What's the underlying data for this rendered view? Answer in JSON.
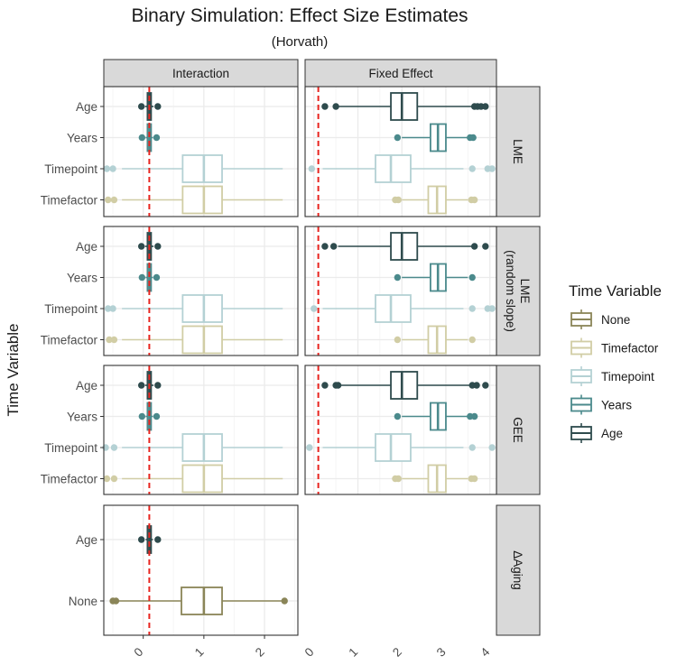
{
  "chart_data": {
    "type": "boxplot",
    "title": "Binary Simulation: Effect Size Estimates",
    "subtitle": "(Horvath)",
    "ylabel": "Time Variable",
    "xlabel": "",
    "reference_line": 0.1,
    "legend": {
      "title": "Time Variable",
      "placement": "right",
      "items": [
        {
          "label": "None",
          "color": "#8a8558"
        },
        {
          "label": "Timefactor",
          "color": "#d1cda5"
        },
        {
          "label": "Timepoint",
          "color": "#b4d1d4"
        },
        {
          "label": "Years",
          "color": "#4b8a8c"
        },
        {
          "label": "Age",
          "color": "#2e4b4d"
        }
      ]
    },
    "columns": [
      {
        "label": "Interaction",
        "xlim": [
          -0.65,
          2.55
        ],
        "ticks": [
          "0",
          "1",
          "2"
        ],
        "tick_values": [
          0,
          1,
          2
        ]
      },
      {
        "label": "Fixed Effect",
        "xlim": [
          -0.2,
          4.15
        ],
        "ticks": [
          "0",
          "1",
          "2",
          "3",
          "4"
        ],
        "tick_values": [
          0,
          1,
          2,
          3,
          4
        ]
      }
    ],
    "rows": [
      {
        "label": "LME",
        "label_lines": [
          "LME"
        ],
        "categories": [
          "Age",
          "Years",
          "Timepoint",
          "Timefactor"
        ]
      },
      {
        "label": "LME (random slope)",
        "label_lines": [
          "LME",
          "(random slope)"
        ],
        "categories": [
          "Age",
          "Years",
          "Timepoint",
          "Timefactor"
        ]
      },
      {
        "label": "GEE",
        "label_lines": [
          "GEE"
        ],
        "categories": [
          "Age",
          "Years",
          "Timepoint",
          "Timefactor"
        ]
      },
      {
        "label": "ΔAging",
        "label_lines": [
          "ΔAging"
        ],
        "categories": [
          "Age",
          "None"
        ]
      }
    ],
    "panels": [
      {
        "row": 0,
        "col": 0,
        "boxes": [
          {
            "category": "Age",
            "group": "Age",
            "whisker_low": 0.03,
            "q1": 0.07,
            "median": 0.1,
            "q3": 0.13,
            "whisker_high": 0.17,
            "outliers": [
              -0.03,
              0.24
            ]
          },
          {
            "category": "Years",
            "group": "Years",
            "whisker_low": 0.04,
            "q1": 0.07,
            "median": 0.1,
            "q3": 0.13,
            "whisker_high": 0.16,
            "outliers": [
              -0.02,
              0.22
            ]
          },
          {
            "category": "Timepoint",
            "group": "Timepoint",
            "whisker_low": -0.35,
            "q1": 0.65,
            "median": 1.0,
            "q3": 1.3,
            "whisker_high": 2.3,
            "outliers": [
              -0.5,
              -0.6
            ]
          },
          {
            "category": "Timefactor",
            "group": "Timefactor",
            "whisker_low": -0.35,
            "q1": 0.65,
            "median": 1.0,
            "q3": 1.3,
            "whisker_high": 2.3,
            "outliers": [
              -0.48,
              -0.58
            ]
          }
        ]
      },
      {
        "row": 0,
        "col": 1,
        "boxes": [
          {
            "category": "Age",
            "group": "Age",
            "whisker_low": 0.55,
            "q1": 1.75,
            "median": 2.0,
            "q3": 2.35,
            "whisker_high": 3.6,
            "outliers": [
              0.25,
              0.5,
              3.65,
              3.72,
              3.8,
              3.9
            ]
          },
          {
            "category": "Years",
            "group": "Years",
            "whisker_low": 2.0,
            "q1": 2.65,
            "median": 2.82,
            "q3": 3.0,
            "whisker_high": 3.5,
            "outliers": [
              1.9,
              3.55,
              3.62
            ]
          },
          {
            "category": "Timepoint",
            "group": "Timepoint",
            "whisker_low": 0.2,
            "q1": 1.4,
            "median": 1.75,
            "q3": 2.2,
            "whisker_high": 3.4,
            "outliers": [
              -0.05,
              3.6,
              3.95,
              4.05
            ]
          },
          {
            "category": "Timefactor",
            "group": "Timefactor",
            "whisker_low": 2.0,
            "q1": 2.6,
            "median": 2.8,
            "q3": 3.0,
            "whisker_high": 3.5,
            "outliers": [
              1.85,
              1.92,
              3.58,
              3.65
            ]
          }
        ]
      },
      {
        "row": 1,
        "col": 0,
        "boxes": [
          {
            "category": "Age",
            "group": "Age",
            "whisker_low": 0.03,
            "q1": 0.07,
            "median": 0.1,
            "q3": 0.13,
            "whisker_high": 0.17,
            "outliers": [
              -0.03,
              0.24
            ]
          },
          {
            "category": "Years",
            "group": "Years",
            "whisker_low": 0.04,
            "q1": 0.07,
            "median": 0.1,
            "q3": 0.13,
            "whisker_high": 0.16,
            "outliers": [
              -0.02,
              0.22
            ]
          },
          {
            "category": "Timepoint",
            "group": "Timepoint",
            "whisker_low": -0.35,
            "q1": 0.65,
            "median": 1.0,
            "q3": 1.3,
            "whisker_high": 2.3,
            "outliers": [
              -0.5,
              -0.58
            ]
          },
          {
            "category": "Timefactor",
            "group": "Timefactor",
            "whisker_low": -0.35,
            "q1": 0.65,
            "median": 1.0,
            "q3": 1.3,
            "whisker_high": 2.3,
            "outliers": [
              -0.48,
              -0.56
            ]
          }
        ]
      },
      {
        "row": 1,
        "col": 1,
        "boxes": [
          {
            "category": "Age",
            "group": "Age",
            "whisker_low": 0.55,
            "q1": 1.75,
            "median": 2.0,
            "q3": 2.35,
            "whisker_high": 3.6,
            "outliers": [
              0.25,
              0.45,
              3.65,
              3.9
            ]
          },
          {
            "category": "Years",
            "group": "Years",
            "whisker_low": 2.0,
            "q1": 2.65,
            "median": 2.82,
            "q3": 3.0,
            "whisker_high": 3.5,
            "outliers": [
              1.9,
              3.6
            ]
          },
          {
            "category": "Timepoint",
            "group": "Timepoint",
            "whisker_low": 0.2,
            "q1": 1.4,
            "median": 1.75,
            "q3": 2.2,
            "whisker_high": 3.4,
            "outliers": [
              0.0,
              3.6,
              3.95,
              4.05
            ]
          },
          {
            "category": "Timefactor",
            "group": "Timefactor",
            "whisker_low": 2.0,
            "q1": 2.6,
            "median": 2.8,
            "q3": 3.0,
            "whisker_high": 3.5,
            "outliers": [
              1.9,
              3.6
            ]
          }
        ]
      },
      {
        "row": 2,
        "col": 0,
        "boxes": [
          {
            "category": "Age",
            "group": "Age",
            "whisker_low": 0.03,
            "q1": 0.07,
            "median": 0.1,
            "q3": 0.13,
            "whisker_high": 0.17,
            "outliers": [
              -0.03,
              0.24
            ]
          },
          {
            "category": "Years",
            "group": "Years",
            "whisker_low": 0.04,
            "q1": 0.07,
            "median": 0.1,
            "q3": 0.13,
            "whisker_high": 0.16,
            "outliers": [
              -0.02,
              0.22
            ]
          },
          {
            "category": "Timepoint",
            "group": "Timepoint",
            "whisker_low": -0.35,
            "q1": 0.65,
            "median": 1.0,
            "q3": 1.3,
            "whisker_high": 2.3,
            "outliers": [
              -0.48,
              -0.62
            ]
          },
          {
            "category": "Timefactor",
            "group": "Timefactor",
            "whisker_low": -0.35,
            "q1": 0.65,
            "median": 1.0,
            "q3": 1.3,
            "whisker_high": 2.3,
            "outliers": [
              -0.48,
              -0.6
            ]
          }
        ]
      },
      {
        "row": 2,
        "col": 1,
        "boxes": [
          {
            "category": "Age",
            "group": "Age",
            "whisker_low": 0.6,
            "q1": 1.75,
            "median": 2.0,
            "q3": 2.35,
            "whisker_high": 3.55,
            "outliers": [
              0.25,
              0.5,
              0.55,
              3.6,
              3.7,
              3.9
            ]
          },
          {
            "category": "Years",
            "group": "Years",
            "whisker_low": 2.0,
            "q1": 2.65,
            "median": 2.82,
            "q3": 3.0,
            "whisker_high": 3.5,
            "outliers": [
              1.9,
              3.55,
              3.65
            ]
          },
          {
            "category": "Timepoint",
            "group": "Timepoint",
            "whisker_low": 0.2,
            "q1": 1.4,
            "median": 1.75,
            "q3": 2.2,
            "whisker_high": 3.4,
            "outliers": [
              -0.1,
              3.6,
              4.05
            ]
          },
          {
            "category": "Timefactor",
            "group": "Timefactor",
            "whisker_low": 2.0,
            "q1": 2.6,
            "median": 2.8,
            "q3": 3.0,
            "whisker_high": 3.5,
            "outliers": [
              1.85,
              1.92,
              3.58,
              3.65
            ]
          }
        ]
      },
      {
        "row": 3,
        "col": 0,
        "boxes": [
          {
            "category": "Age",
            "group": "Age",
            "whisker_low": 0.04,
            "q1": 0.07,
            "median": 0.1,
            "q3": 0.13,
            "whisker_high": 0.16,
            "outliers": [
              -0.03,
              0.24
            ]
          },
          {
            "category": "None",
            "group": "None",
            "whisker_low": -0.4,
            "q1": 0.63,
            "median": 1.0,
            "q3": 1.3,
            "whisker_high": 2.3,
            "outliers": [
              -0.45,
              -0.5,
              2.33
            ]
          }
        ]
      }
    ]
  }
}
